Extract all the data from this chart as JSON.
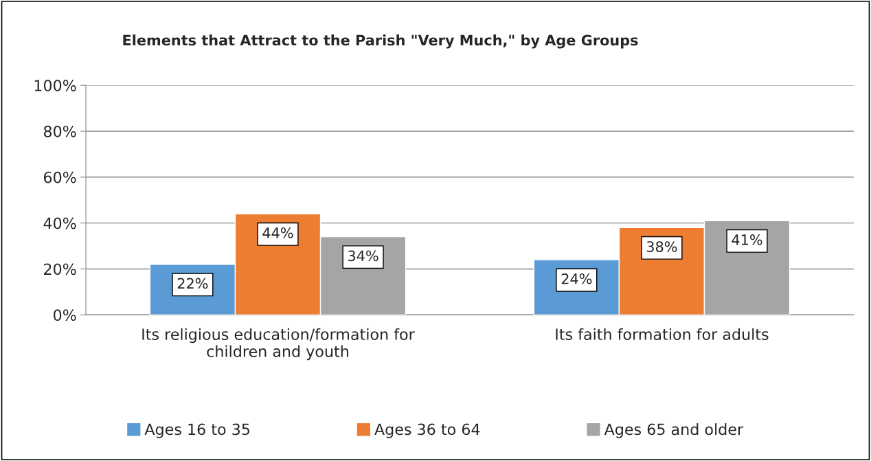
{
  "chart_data": {
    "type": "bar",
    "title": "Elements that Attract to the Parish \"Very Much,\" by Age Groups",
    "categories": [
      "Its religious education/formation for\nchildren and youth",
      "Its faith formation for adults"
    ],
    "series": [
      {
        "name": "Ages 16 to 35",
        "color": "#5b9bd5",
        "values": [
          22,
          24
        ],
        "value_labels": [
          "22%",
          "24%"
        ]
      },
      {
        "name": "Ages 36 to 64",
        "color": "#ed7d31",
        "values": [
          44,
          38
        ],
        "value_labels": [
          "44%",
          "38%"
        ]
      },
      {
        "name": "Ages 65 and older",
        "color": "#a5a5a5",
        "values": [
          34,
          41
        ],
        "value_labels": [
          "34%",
          "41%"
        ]
      }
    ],
    "ylim": [
      0,
      100
    ],
    "yticks": [
      {
        "value": 0,
        "label": "0%"
      },
      {
        "value": 20,
        "label": "20%"
      },
      {
        "value": 40,
        "label": "40%"
      },
      {
        "value": 60,
        "label": "60%"
      },
      {
        "value": 80,
        "label": "80%"
      },
      {
        "value": 100,
        "label": "100%"
      }
    ],
    "grid": "y",
    "legend": "bottom"
  }
}
